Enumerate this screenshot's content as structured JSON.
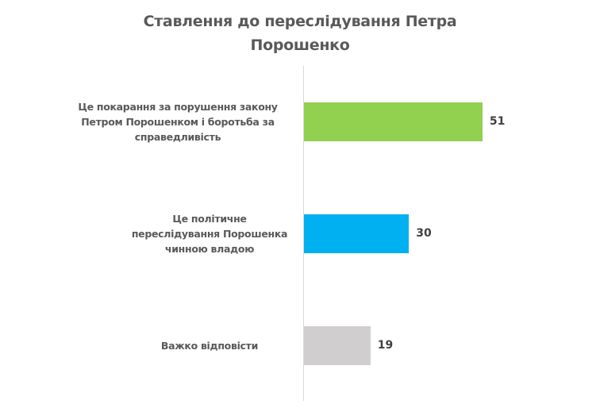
{
  "chart_data": {
    "type": "bar",
    "orientation": "horizontal",
    "title": "Ставлення до переслідування Петра Порошенко",
    "title_lines": [
      "Ставлення до переслідування Петра",
      "Порошенко"
    ],
    "categories": [
      "Це покарання за порушення закону Петром Порошенком і боротьба за справедливість",
      "Це політичне переслідування Порошенка чинною владою",
      "Важко відповісти"
    ],
    "values": [
      51,
      30,
      19
    ],
    "colors": [
      "#92d050",
      "#00b0f0",
      "#d0cece"
    ],
    "xlabel": "",
    "ylabel": "",
    "xlim": [
      0,
      60
    ],
    "grid": false,
    "legend": null,
    "data_labels": [
      "51",
      "30",
      "19"
    ]
  },
  "labels": [
    {
      "text": "Це покарання за порушення закону Петром Порошенком і боротьба за справедливість"
    },
    {
      "text": "Це політичне переслідування Порошенка чинною владою"
    },
    {
      "text": "Важко відповісти"
    }
  ]
}
